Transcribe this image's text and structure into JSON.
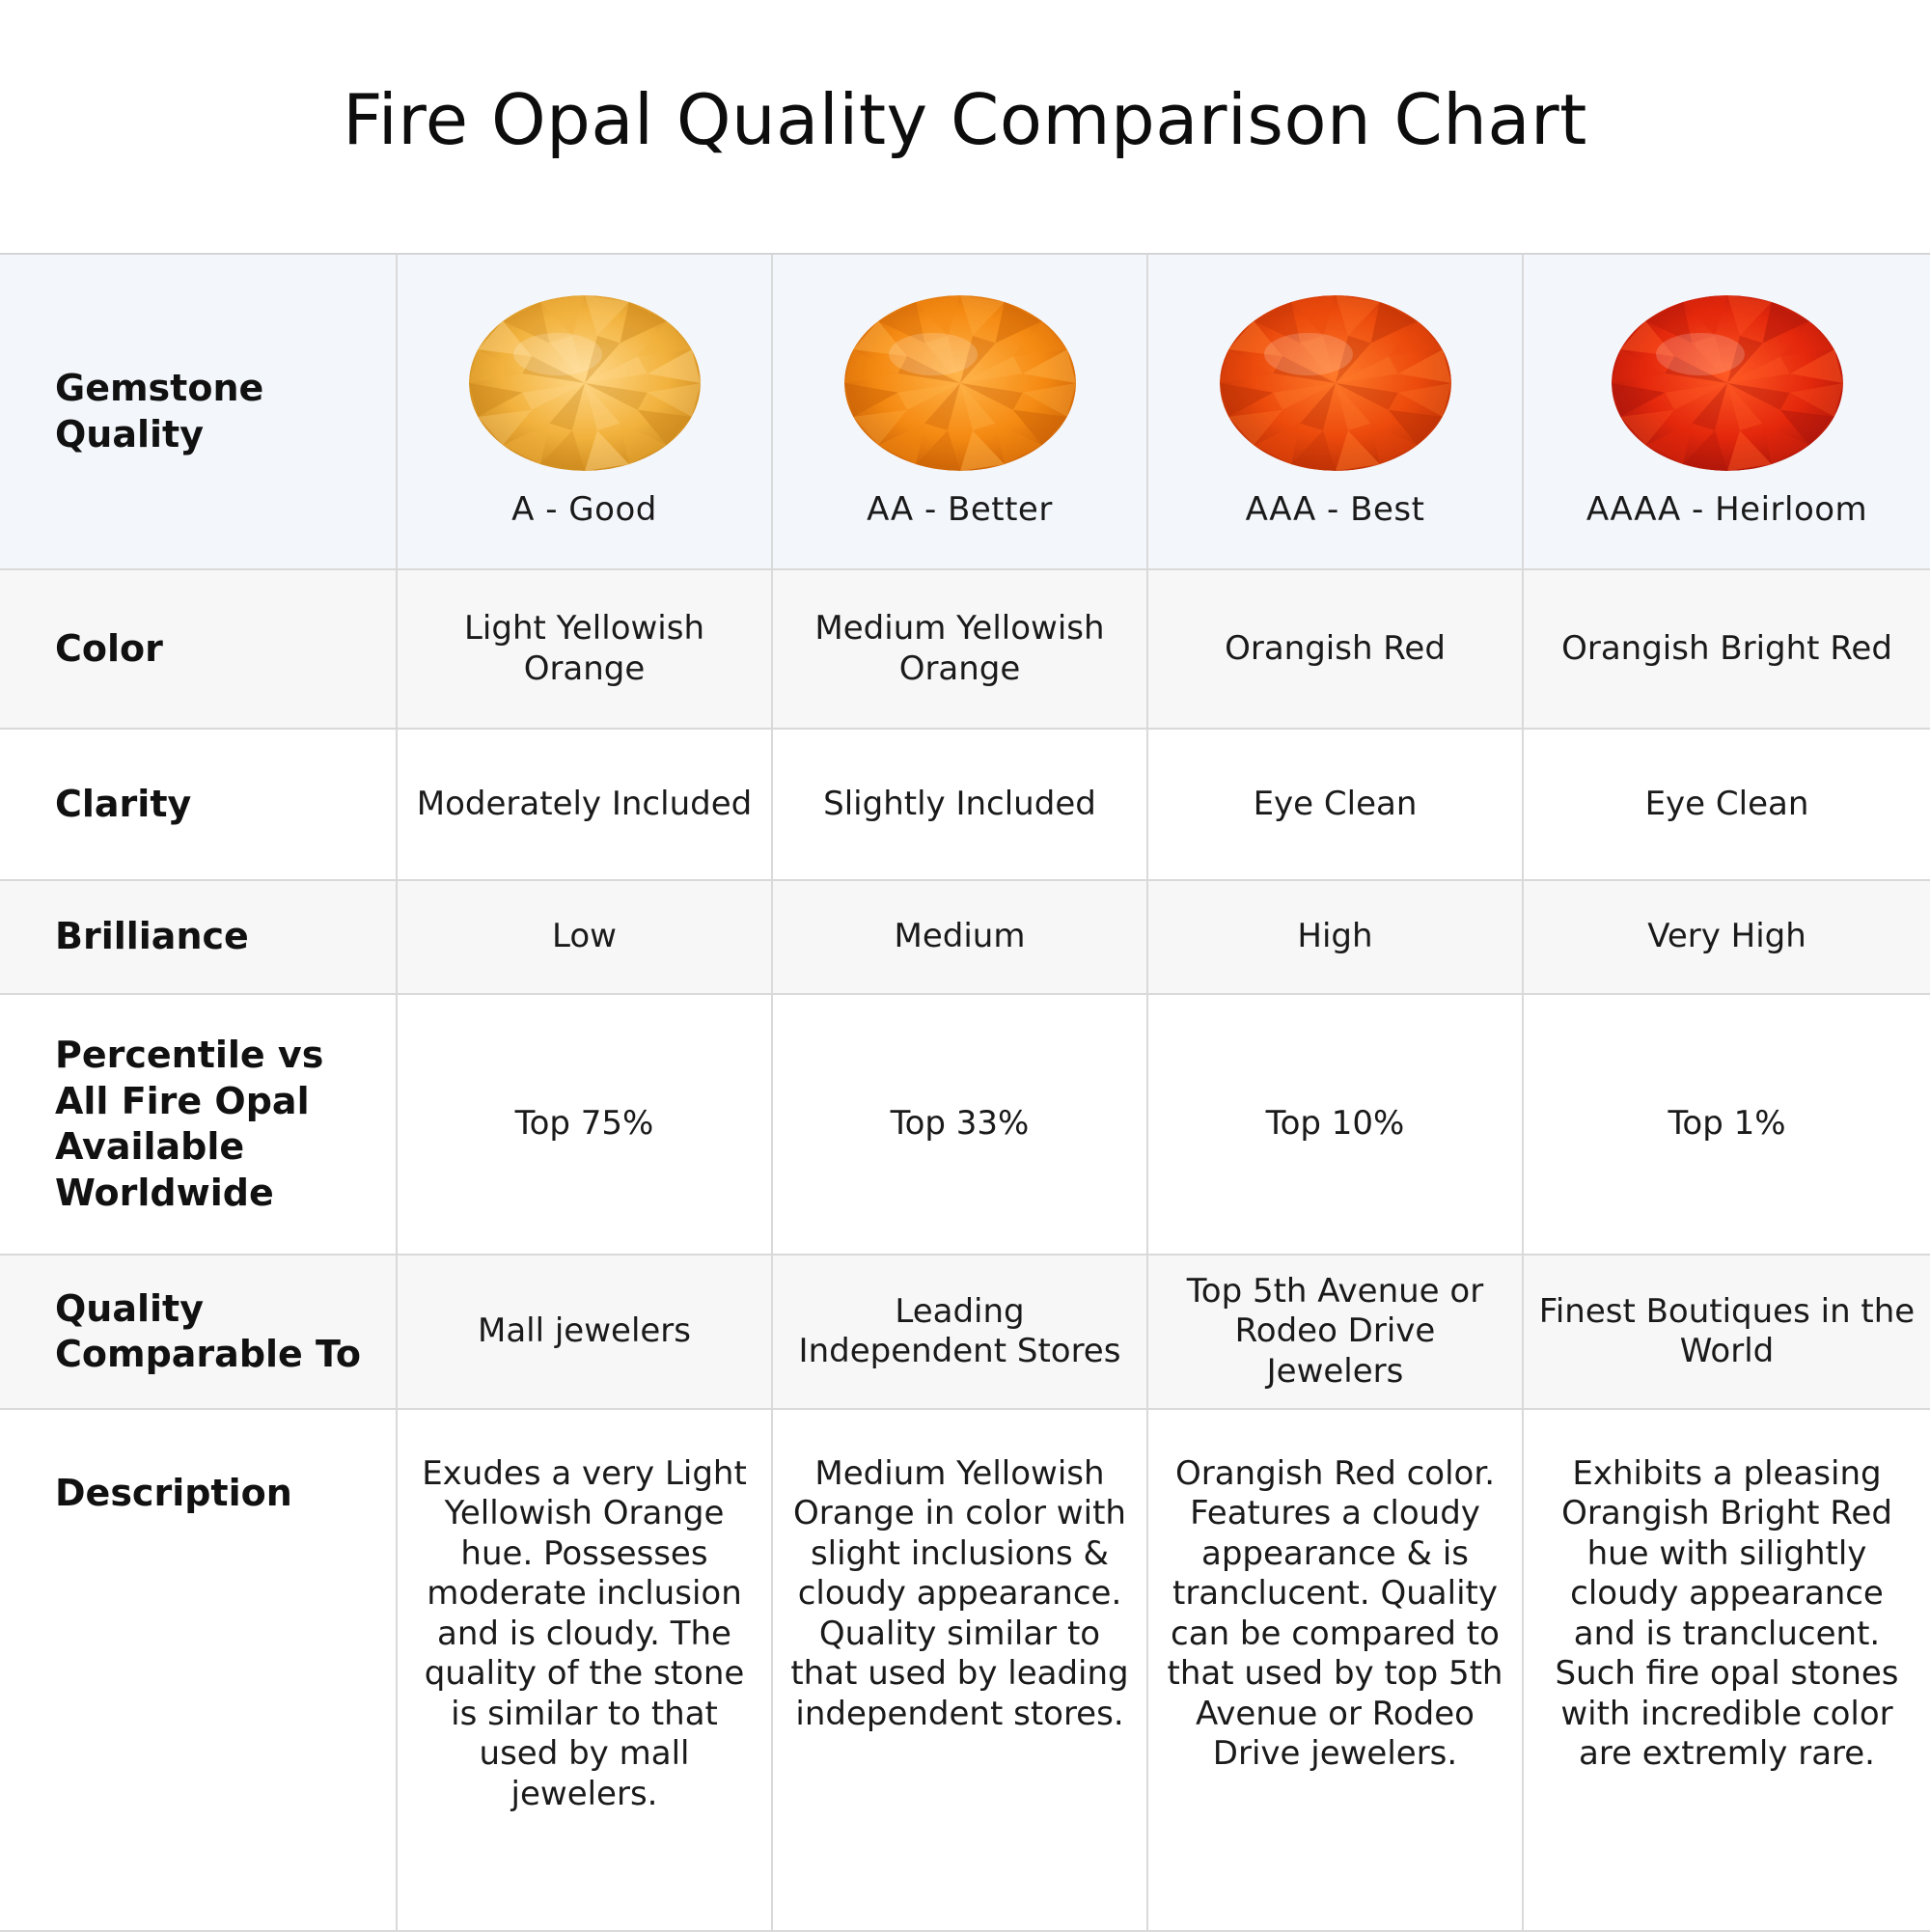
{
  "title": "Fire Opal Quality Comparison Chart",
  "header": {
    "label": "Gemstone Quality",
    "grades": [
      {
        "name": "A - Good",
        "color": "#f2b23d",
        "light": "#ffd889",
        "dark": "#c9861a",
        "icon": "gem-icon"
      },
      {
        "name": "AA - Better",
        "color": "#f58a12",
        "light": "#ffb44a",
        "dark": "#c85f05",
        "icon": "gem-icon"
      },
      {
        "name": "AAA - Best",
        "color": "#ec4a0c",
        "light": "#ff7a2a",
        "dark": "#b82e05",
        "icon": "gem-icon"
      },
      {
        "name": "AAAA - Heirloom",
        "color": "#e4280c",
        "light": "#ff5a24",
        "dark": "#a8150a",
        "icon": "gem-icon"
      }
    ]
  },
  "rows": [
    {
      "label": "Color",
      "values": [
        "Light Yellowish Orange",
        "Medium Yellowish Orange",
        "Orangish Red",
        "Orangish Bright Red"
      ]
    },
    {
      "label": "Clarity",
      "values": [
        "Moderately Included",
        "Slightly Included",
        "Eye Clean",
        "Eye Clean"
      ]
    },
    {
      "label": "Brilliance",
      "values": [
        "Low",
        "Medium",
        "High",
        "Very High"
      ]
    },
    {
      "label": "Percentile vs All Fire Opal Available Worldwide",
      "values": [
        "Top 75%",
        "Top 33%",
        "Top 10%",
        "Top 1%"
      ]
    },
    {
      "label": "Quality Comparable To",
      "values": [
        "Mall jewelers",
        "Leading Independent Stores",
        "Top 5th Avenue or Rodeo Drive Jewelers",
        "Finest Boutiques in the World"
      ]
    },
    {
      "label": "Description",
      "values": [
        "Exudes a very Light Yellowish Orange hue. Possesses moderate inclusion and is cloudy. The quality of the stone is similar to that used by mall jewelers.",
        "Medium Yellowish Orange in color with slight inclusions & cloudy appearance. Quality similar to that used by leading independent stores.",
        "Orangish Red color. Features a cloudy appearance & is tranclucent. Quality can be compared to that used by top 5th Avenue or Rodeo Drive jewelers.",
        "Exhibits a pleasing Orangish Bright Red hue with silightly cloudy appearance and is tranclucent. Such fire opal stones with incredible color are extremly rare."
      ]
    }
  ]
}
